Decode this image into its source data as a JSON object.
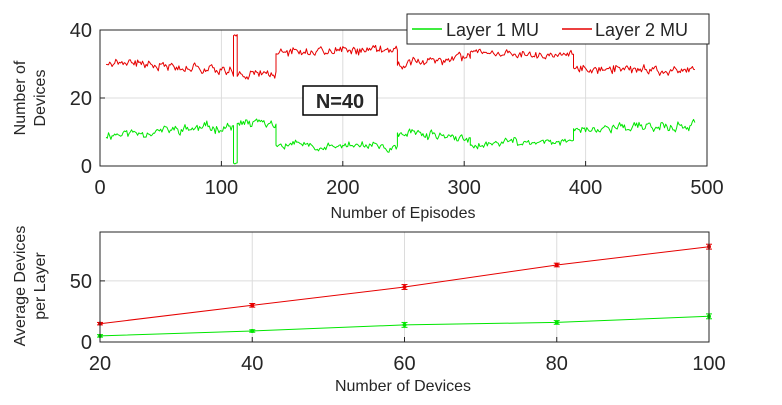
{
  "colors": {
    "layer1": "#00e600",
    "layer2": "#e60000",
    "grid": "#dcdcdc",
    "axis": "#262626"
  },
  "chart_data": [
    {
      "type": "line",
      "title": "",
      "xlabel": "Number of Episodes",
      "ylabel_lines": [
        "Number of",
        "Devices"
      ],
      "xlim": [
        0,
        500
      ],
      "ylim": [
        0,
        40
      ],
      "xticks": [
        0,
        100,
        200,
        300,
        400,
        500
      ],
      "yticks": [
        0,
        20,
        40
      ],
      "grid": true,
      "legend": {
        "placement": "top-right",
        "entries": [
          "Layer 1 MU",
          "Layer 2 MU"
        ]
      },
      "annotation": {
        "text": "N=40",
        "x": 200,
        "y": 20
      },
      "episode_range": [
        5,
        490
      ],
      "series": [
        {
          "name": "Layer 1 MU",
          "color": "#00e600",
          "segments": [
            {
              "x_start": 5,
              "x_end": 110,
              "mean": 10.5,
              "trend": 2.5,
              "noise": 1.3,
              "seed": 11
            },
            {
              "x_start": 110,
              "x_end": 113,
              "mean": 1.0,
              "trend": 0,
              "noise": 0.3,
              "seed": 12
            },
            {
              "x_start": 113,
              "x_end": 145,
              "mean": 12.5,
              "trend": -1.0,
              "noise": 1.3,
              "seed": 13
            },
            {
              "x_start": 145,
              "x_end": 245,
              "mean": 6.0,
              "trend": -1.0,
              "noise": 1.2,
              "seed": 14
            },
            {
              "x_start": 245,
              "x_end": 305,
              "mean": 9.0,
              "trend": -2.0,
              "noise": 1.2,
              "seed": 15
            },
            {
              "x_start": 305,
              "x_end": 390,
              "mean": 7.0,
              "trend": 1.5,
              "noise": 1.1,
              "seed": 16
            },
            {
              "x_start": 390,
              "x_end": 490,
              "mean": 11.5,
              "trend": 1.0,
              "noise": 1.3,
              "seed": 17
            }
          ]
        },
        {
          "name": "Layer 2 MU",
          "color": "#e60000",
          "segments": [
            {
              "x_start": 5,
              "x_end": 110,
              "mean": 29.5,
              "trend": -2.5,
              "noise": 1.3,
              "seed": 21
            },
            {
              "x_start": 110,
              "x_end": 113,
              "mean": 38.5,
              "trend": 0,
              "noise": 0.3,
              "seed": 22
            },
            {
              "x_start": 113,
              "x_end": 145,
              "mean": 27.5,
              "trend": 1.0,
              "noise": 1.3,
              "seed": 23
            },
            {
              "x_start": 145,
              "x_end": 245,
              "mean": 34.0,
              "trend": 1.0,
              "noise": 1.2,
              "seed": 24
            },
            {
              "x_start": 245,
              "x_end": 305,
              "mean": 31.0,
              "trend": 2.0,
              "noise": 1.2,
              "seed": 25
            },
            {
              "x_start": 305,
              "x_end": 390,
              "mean": 33.0,
              "trend": -1.5,
              "noise": 1.1,
              "seed": 26
            },
            {
              "x_start": 390,
              "x_end": 490,
              "mean": 28.5,
              "trend": -1.0,
              "noise": 1.3,
              "seed": 27
            }
          ]
        }
      ]
    },
    {
      "type": "line",
      "title": "",
      "xlabel": "Number of Devices",
      "ylabel_lines": [
        "Average Devices",
        "per Layer"
      ],
      "xlim": [
        20,
        100
      ],
      "ylim": [
        0,
        90
      ],
      "xticks": [
        20,
        40,
        60,
        80,
        100
      ],
      "yticks": [
        0,
        50
      ],
      "grid": true,
      "error_bars": true,
      "series": [
        {
          "name": "Layer 1 MU",
          "color": "#00e600",
          "x": [
            20,
            40,
            60,
            80,
            100
          ],
          "y": [
            5,
            9,
            14,
            16,
            21
          ],
          "err": [
            1,
            1,
            2,
            1.5,
            2
          ]
        },
        {
          "name": "Layer 2 MU",
          "color": "#e60000",
          "x": [
            20,
            40,
            60,
            80,
            100
          ],
          "y": [
            15,
            30,
            45,
            63,
            78
          ],
          "err": [
            1,
            1.5,
            2,
            1.5,
            2
          ]
        }
      ]
    }
  ]
}
